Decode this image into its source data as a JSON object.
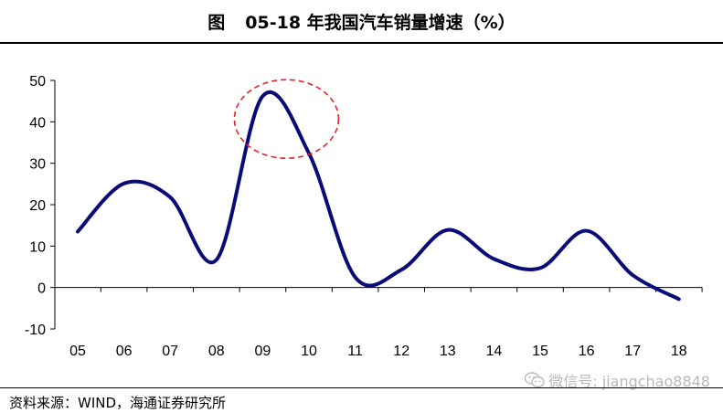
{
  "header": {
    "figure_label": "图",
    "title": "05-18 年我国汽车销量增速（%）"
  },
  "footer": {
    "source": "资料来源：WIND，海通证券研究所",
    "watermark": "微信号: jiangchao8848"
  },
  "chart_data": {
    "type": "line",
    "title": "05-18 年我国汽车销量增速（%）",
    "xlabel": "",
    "ylabel": "",
    "categories": [
      "05",
      "06",
      "07",
      "08",
      "09",
      "10",
      "11",
      "12",
      "13",
      "14",
      "15",
      "16",
      "17",
      "18"
    ],
    "series": [
      {
        "values": [
          13.5,
          25.1,
          21.8,
          6.7,
          46.2,
          32.4,
          2.5,
          4.3,
          13.9,
          6.9,
          4.7,
          13.7,
          3.0,
          -2.8
        ]
      }
    ],
    "ylim": [
      -10,
      50
    ],
    "yticks": [
      -10,
      0,
      10,
      20,
      30,
      40,
      50
    ],
    "grid": false,
    "legend": "none",
    "line_color": "#0a0a78",
    "annotation": {
      "shape": "dashed-ellipse",
      "color": "#e8212b",
      "around_category": "09"
    }
  }
}
